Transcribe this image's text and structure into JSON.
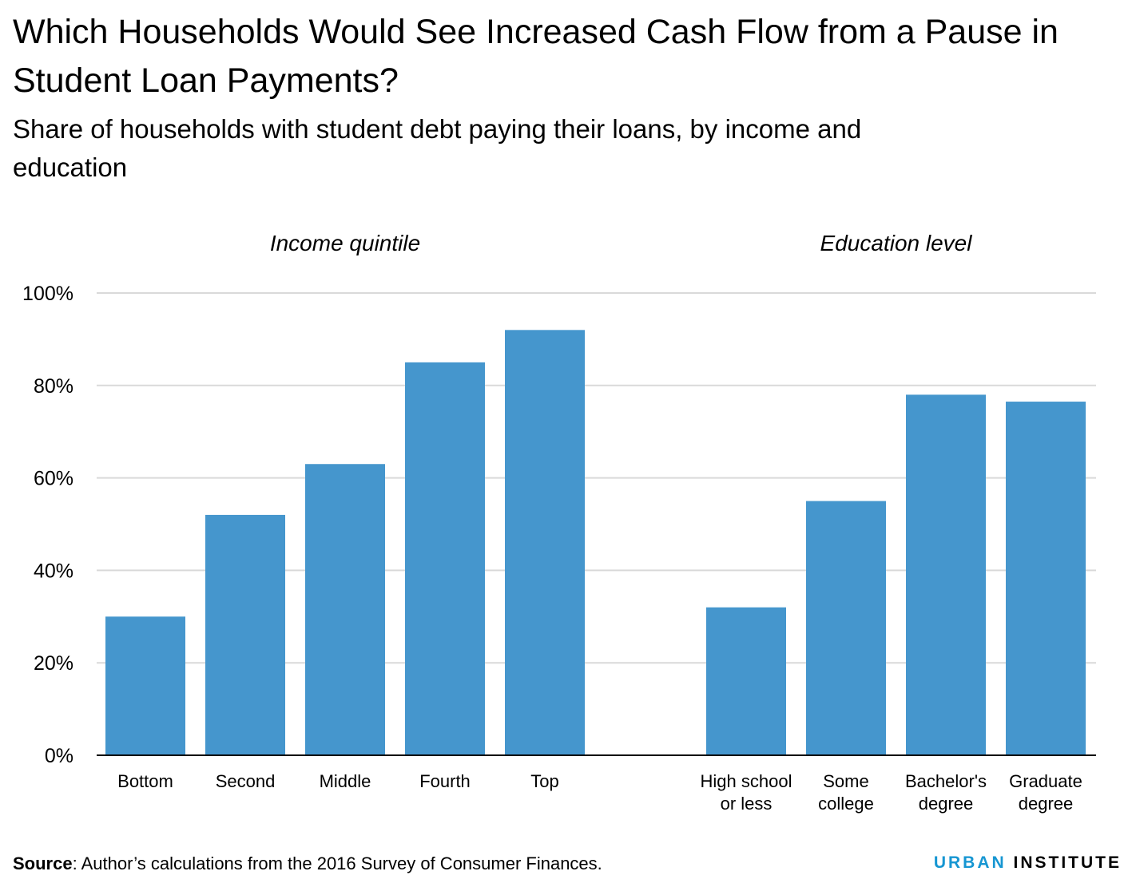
{
  "title": "Which Households Would See Increased Cash Flow from a Pause in Student Loan Payments?",
  "subtitle": "Share of households with student debt paying their loans, by income and education",
  "source": {
    "label": "Source",
    "text": ": Author’s calculations from the 2016 Survey of Consumer Finances."
  },
  "brand": {
    "part1": "URBAN",
    "part2": "INSTITUTE"
  },
  "colors": {
    "bar": "#4596cd",
    "grid": "#d9d9d9",
    "axis": "#000000",
    "brand_accent": "#1696d2"
  },
  "chart_data": {
    "type": "bar",
    "ylim": [
      0,
      100
    ],
    "yticks": [
      0,
      20,
      40,
      60,
      80,
      100
    ],
    "ytick_labels": [
      "0%",
      "20%",
      "40%",
      "60%",
      "80%",
      "100%"
    ],
    "grid": true,
    "groups": [
      {
        "label": "Income quintile",
        "categories": [
          "Bottom",
          "Second",
          "Middle",
          "Fourth",
          "Top"
        ],
        "values": [
          30,
          52,
          63,
          85,
          92
        ]
      },
      {
        "label": "Education level",
        "categories": [
          "High school or less",
          "Some college",
          "Bachelor's degree",
          "Graduate degree"
        ],
        "category_lines": [
          [
            "High school",
            "or less"
          ],
          [
            "Some",
            "college"
          ],
          [
            "Bachelor's",
            "degree"
          ],
          [
            "Graduate",
            "degree"
          ]
        ],
        "values": [
          32,
          55,
          78,
          76.5
        ]
      }
    ]
  }
}
